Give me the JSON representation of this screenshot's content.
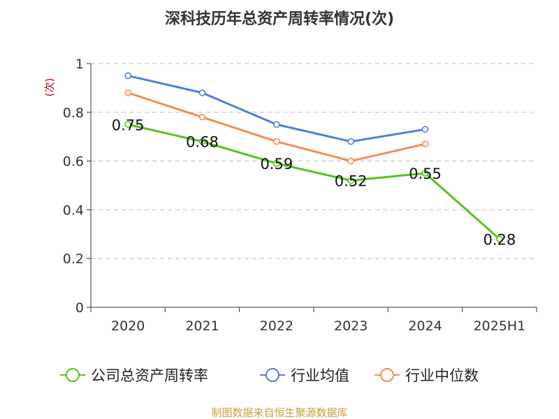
{
  "chart_data": {
    "type": "line",
    "title": "深科技历年总资产周转率情况(次)",
    "ylabel": "(次)",
    "ylim": [
      0,
      1
    ],
    "yticks": [
      "0",
      "0.2",
      "0.4",
      "0.6",
      "0.8",
      "1"
    ],
    "categories": [
      "2020",
      "2021",
      "2022",
      "2023",
      "2024",
      "2025H1"
    ],
    "grid": true,
    "legend_position": "bottom",
    "series": [
      {
        "name": "公司总资产周转率",
        "color": "#5ac11c",
        "values": [
          0.75,
          0.68,
          0.59,
          0.52,
          0.55,
          0.28
        ],
        "labels": [
          "0.75",
          "0.68",
          "0.59",
          "0.52",
          "0.55",
          "0.28"
        ]
      },
      {
        "name": "行业均值",
        "color": "#4f7fd9",
        "values": [
          0.95,
          0.88,
          0.75,
          0.68,
          0.73,
          null
        ]
      },
      {
        "name": "行业中位数",
        "color": "#f58b58",
        "values": [
          0.88,
          0.78,
          0.68,
          0.6,
          0.67,
          null
        ]
      }
    ]
  },
  "footer": {
    "source": "制图数据来自恒生聚源数据库"
  },
  "colors": {
    "title": "#333333",
    "axis": "#333333",
    "grid": "#bbbbbb",
    "ylabel": "#cc0000",
    "source": "#c8a03c"
  }
}
